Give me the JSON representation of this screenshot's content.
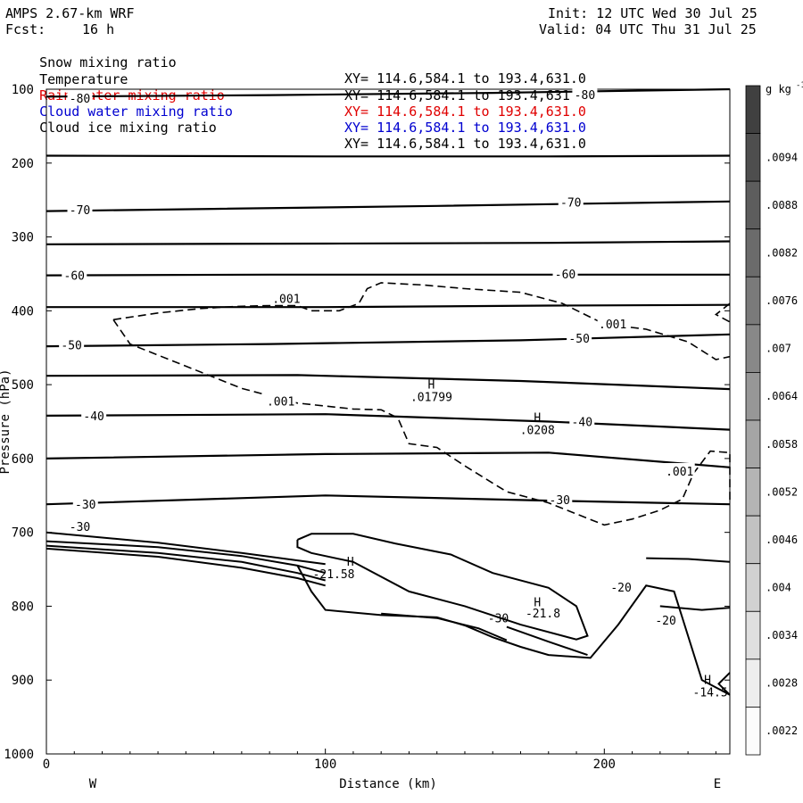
{
  "header": {
    "model": "AMPS 2.67-km WRF",
    "init": "Init: 12 UTC Wed 30 Jul 25",
    "fcst_label": "Fcst:",
    "fcst_value": "16 h",
    "valid": "Valid: 04 UTC Thu 31 Jul 25"
  },
  "fields": [
    {
      "name": "Snow mixing ratio",
      "xy": "XY= 114.6,584.1 to 193.4,631.0",
      "color": "#000000"
    },
    {
      "name": "Temperature",
      "xy": "XY= 114.6,584.1 to 193.4,631.0",
      "color": "#000000"
    },
    {
      "name": "Rain water mixing ratio",
      "xy": "XY= 114.6,584.1 to 193.4,631.0",
      "color": "#e00000"
    },
    {
      "name": "Cloud water mixing ratio",
      "xy": "XY= 114.6,584.1 to 193.4,631.0",
      "color": "#0000d0"
    },
    {
      "name": "Cloud ice mixing ratio",
      "xy": "XY= 114.6,584.1 to 193.4,631.0",
      "color": "#000000"
    }
  ],
  "chart_data": {
    "type": "contour",
    "xlabel": "Distance (km)",
    "ylabel": "Pressure (hPa)",
    "xlim": [
      0,
      245
    ],
    "ylim": [
      100,
      1000
    ],
    "x_ticks": [
      0,
      100,
      200
    ],
    "y_ticks": [
      100,
      200,
      300,
      400,
      500,
      600,
      700,
      800,
      900,
      1000
    ],
    "x_ends": {
      "left": "W",
      "right": "E"
    },
    "colorbar": {
      "unit": "g kg",
      "unit_exp": "-1",
      "ticks": [
        ".0094",
        ".0088",
        ".0082",
        ".0076",
        ".007",
        ".0064",
        ".0058",
        ".0052",
        ".0046",
        ".004",
        ".0034",
        ".0028",
        ".0022"
      ]
    },
    "isotherms": [
      {
        "label": "-80",
        "points": [
          [
            0,
            110
          ],
          [
            80,
            108
          ],
          [
            160,
            105
          ],
          [
            245,
            100
          ]
        ],
        "label_at": [
          [
            12,
            112
          ],
          [
            193,
            107
          ]
        ]
      },
      {
        "label": "",
        "points": [
          [
            0,
            190
          ],
          [
            100,
            191
          ],
          [
            180,
            191
          ],
          [
            245,
            190
          ]
        ],
        "label_at": []
      },
      {
        "label": "-70",
        "points": [
          [
            0,
            265
          ],
          [
            60,
            262
          ],
          [
            140,
            258
          ],
          [
            245,
            252
          ]
        ],
        "label_at": [
          [
            12,
            263
          ],
          [
            188,
            253
          ]
        ]
      },
      {
        "label": "",
        "points": [
          [
            0,
            310
          ],
          [
            100,
            309
          ],
          [
            180,
            308
          ],
          [
            245,
            306
          ]
        ],
        "label_at": []
      },
      {
        "label": "-60",
        "points": [
          [
            0,
            352
          ],
          [
            80,
            351
          ],
          [
            160,
            351
          ],
          [
            245,
            351
          ]
        ],
        "label_at": [
          [
            10,
            352
          ],
          [
            186,
            350
          ]
        ]
      },
      {
        "label": "",
        "points": [
          [
            0,
            395
          ],
          [
            100,
            395
          ],
          [
            180,
            393
          ],
          [
            245,
            392
          ]
        ],
        "label_at": []
      },
      {
        "label": "-50",
        "points": [
          [
            0,
            448
          ],
          [
            80,
            445
          ],
          [
            170,
            440
          ],
          [
            245,
            432
          ]
        ],
        "label_at": [
          [
            9,
            446
          ],
          [
            191,
            437
          ]
        ]
      },
      {
        "label": "",
        "points": [
          [
            0,
            488
          ],
          [
            90,
            487
          ],
          [
            170,
            495
          ],
          [
            245,
            506
          ]
        ],
        "label_at": []
      },
      {
        "label": "-40",
        "points": [
          [
            0,
            542
          ],
          [
            100,
            540
          ],
          [
            180,
            550
          ],
          [
            245,
            561
          ]
        ],
        "label_at": [
          [
            17,
            542
          ],
          [
            192,
            550
          ]
        ]
      },
      {
        "label": "",
        "points": [
          [
            0,
            600
          ],
          [
            100,
            594
          ],
          [
            180,
            592
          ],
          [
            245,
            612
          ]
        ],
        "label_at": []
      },
      {
        "label": "-30",
        "points": [
          [
            0,
            662
          ],
          [
            100,
            650
          ],
          [
            180,
            657
          ],
          [
            245,
            662
          ]
        ],
        "label_at": [
          [
            14,
            662
          ],
          [
            184,
            656
          ]
        ]
      }
    ],
    "dashed_contours": [
      {
        "label": ".001",
        "points": [
          [
            24,
            412
          ],
          [
            40,
            403
          ],
          [
            55,
            397
          ],
          [
            68,
            394
          ],
          [
            80,
            393
          ],
          [
            90,
            393
          ],
          [
            95,
            400
          ],
          [
            105,
            400
          ],
          [
            112,
            390
          ],
          [
            115,
            370
          ],
          [
            120,
            362
          ],
          [
            135,
            365
          ],
          [
            150,
            370
          ],
          [
            170,
            375
          ],
          [
            185,
            390
          ],
          [
            200,
            418
          ],
          [
            215,
            425
          ],
          [
            230,
            442
          ],
          [
            240,
            466
          ],
          [
            245,
            462
          ]
        ],
        "label_at": [
          [
            86,
            383
          ],
          [
            203,
            418
          ]
        ]
      },
      {
        "label": ".001",
        "points": [
          [
            24,
            412
          ],
          [
            30,
            445
          ],
          [
            50,
            475
          ],
          [
            70,
            505
          ],
          [
            90,
            525
          ],
          [
            110,
            533
          ],
          [
            120,
            534
          ],
          [
            126,
            545
          ],
          [
            130,
            580
          ],
          [
            140,
            585
          ],
          [
            150,
            610
          ],
          [
            165,
            645
          ],
          [
            180,
            660
          ],
          [
            190,
            675
          ],
          [
            200,
            690
          ],
          [
            210,
            682
          ],
          [
            220,
            670
          ],
          [
            228,
            655
          ],
          [
            232,
            620
          ],
          [
            238,
            590
          ],
          [
            245,
            592
          ],
          [
            245,
            660
          ]
        ],
        "label_at": [
          [
            84,
            522
          ],
          [
            227,
            617
          ]
        ]
      },
      {
        "label": "",
        "points": [
          [
            245,
            390
          ],
          [
            240,
            405
          ],
          [
            245,
            415
          ]
        ],
        "label_at": []
      }
    ],
    "lower_contours": [
      {
        "points": [
          [
            0,
            700
          ],
          [
            40,
            714
          ],
          [
            70,
            728
          ],
          [
            90,
            738
          ],
          [
            100,
            743
          ]
        ],
        "dash": false
      },
      {
        "points": [
          [
            0,
            712
          ],
          [
            40,
            720
          ],
          [
            70,
            732
          ],
          [
            90,
            745
          ],
          [
            100,
            755
          ]
        ],
        "dash": false
      },
      {
        "points": [
          [
            0,
            718
          ],
          [
            40,
            728
          ],
          [
            70,
            740
          ],
          [
            90,
            755
          ],
          [
            100,
            765
          ]
        ],
        "dash": false
      },
      {
        "points": [
          [
            0,
            722
          ],
          [
            40,
            733
          ],
          [
            70,
            748
          ],
          [
            90,
            762
          ],
          [
            100,
            772
          ]
        ],
        "dash": false
      },
      {
        "points": [
          [
            90,
            710
          ],
          [
            95,
            702
          ],
          [
            110,
            702
          ],
          [
            125,
            715
          ],
          [
            145,
            730
          ],
          [
            160,
            755
          ],
          [
            180,
            775
          ],
          [
            190,
            800
          ],
          [
            194,
            840
          ],
          [
            190,
            845
          ],
          [
            170,
            825
          ],
          [
            150,
            800
          ],
          [
            130,
            780
          ],
          [
            110,
            740
          ],
          [
            95,
            728
          ],
          [
            90,
            720
          ],
          [
            90,
            710
          ]
        ],
        "dash": false
      },
      {
        "points": [
          [
            90,
            745
          ],
          [
            95,
            780
          ],
          [
            100,
            805
          ],
          [
            120,
            812
          ],
          [
            140,
            815
          ],
          [
            150,
            826
          ],
          [
            160,
            842
          ],
          [
            170,
            855
          ],
          [
            180,
            866
          ],
          [
            195,
            870
          ],
          [
            205,
            825
          ],
          [
            215,
            772
          ],
          [
            225,
            780
          ],
          [
            235,
            900
          ],
          [
            245,
            920
          ]
        ],
        "dash": false
      },
      {
        "points": [
          [
            120,
            810
          ],
          [
            140,
            816
          ],
          [
            155,
            830
          ],
          [
            165,
            846
          ]
        ],
        "dash": false
      },
      {
        "points": [
          [
            165,
            828
          ],
          [
            180,
            848
          ],
          [
            194,
            866
          ]
        ],
        "dash": false
      },
      {
        "points": [
          [
            215,
            735
          ],
          [
            230,
            736
          ],
          [
            245,
            740
          ]
        ],
        "dash": false
      },
      {
        "points": [
          [
            220,
            800
          ],
          [
            235,
            805
          ],
          [
            245,
            802
          ]
        ],
        "dash": false
      },
      {
        "points": [
          [
            245,
            890
          ],
          [
            241,
            905
          ],
          [
            245,
            920
          ]
        ],
        "dash": false
      }
    ],
    "annotations": [
      {
        "text": "H",
        "x": 138,
        "y": 505
      },
      {
        "text": ".01799",
        "x": 138,
        "y": 522
      },
      {
        "text": "H",
        "x": 176,
        "y": 550
      },
      {
        "text": ".0208",
        "x": 176,
        "y": 567
      },
      {
        "text": "H",
        "x": 109,
        "y": 745
      },
      {
        "text": "-21.58",
        "x": 103,
        "y": 762
      },
      {
        "text": "H",
        "x": 176,
        "y": 800
      },
      {
        "text": "-21.8",
        "x": 178,
        "y": 815
      },
      {
        "text": "-30",
        "x": 12,
        "y": 698
      },
      {
        "text": "-30",
        "x": 162,
        "y": 822
      },
      {
        "text": "-20",
        "x": 206,
        "y": 780
      },
      {
        "text": "-20",
        "x": 222,
        "y": 825
      },
      {
        "text": "H",
        "x": 237,
        "y": 905
      },
      {
        "text": "-14.5",
        "x": 238,
        "y": 922
      }
    ]
  }
}
